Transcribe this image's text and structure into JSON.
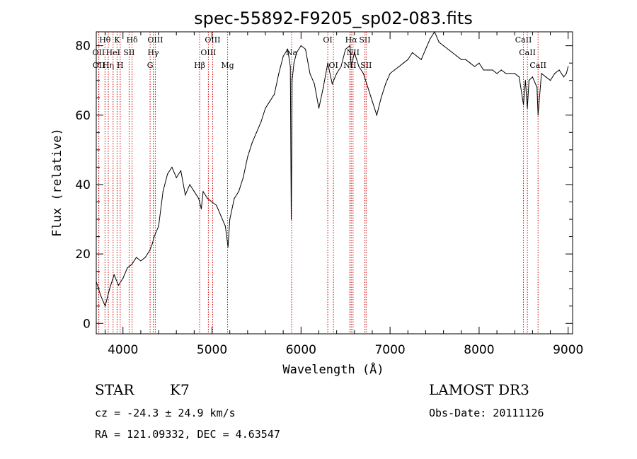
{
  "chart_data": {
    "type": "line",
    "title": "spec-55892-F9205_sp02-083.fits",
    "xlabel": "Wavelength (Å)",
    "ylabel": "Flux (relative)",
    "xlim": [
      3700,
      9050
    ],
    "ylim": [
      -3,
      84
    ],
    "x_ticks": [
      4000,
      5000,
      6000,
      7000,
      8000,
      9000
    ],
    "y_ticks": [
      0,
      20,
      40,
      60,
      80
    ],
    "series": [
      {
        "name": "spectrum",
        "x": [
          3700,
          3750,
          3800,
          3850,
          3900,
          3950,
          4000,
          4050,
          4100,
          4150,
          4200,
          4250,
          4300,
          4330,
          4350,
          4400,
          4450,
          4500,
          4550,
          4600,
          4650,
          4700,
          4750,
          4800,
          4850,
          4880,
          4900,
          4950,
          5000,
          5050,
          5100,
          5150,
          5180,
          5200,
          5250,
          5300,
          5350,
          5400,
          5450,
          5500,
          5550,
          5600,
          5650,
          5700,
          5750,
          5800,
          5850,
          5880,
          5890,
          5895,
          5900,
          5920,
          5950,
          6000,
          6050,
          6100,
          6150,
          6200,
          6250,
          6300,
          6350,
          6400,
          6450,
          6500,
          6550,
          6563,
          6600,
          6650,
          6700,
          6750,
          6800,
          6850,
          6900,
          6950,
          7000,
          7050,
          7100,
          7150,
          7200,
          7250,
          7300,
          7350,
          7400,
          7450,
          7500,
          7550,
          7600,
          7650,
          7700,
          7750,
          7800,
          7850,
          7900,
          7950,
          8000,
          8050,
          8100,
          8150,
          8200,
          8250,
          8300,
          8350,
          8400,
          8450,
          8498,
          8520,
          8542,
          8560,
          8600,
          8650,
          8662,
          8700,
          8750,
          8800,
          8850,
          8900,
          8950,
          8980,
          9000
        ],
        "y": [
          12,
          8,
          5,
          10,
          14,
          11,
          13,
          16,
          17,
          19,
          18,
          19,
          21,
          23,
          25,
          28,
          38,
          43,
          45,
          42,
          44,
          37,
          40,
          38,
          36,
          33,
          38,
          36,
          35,
          34,
          31,
          28,
          22,
          30,
          36,
          38,
          42,
          48,
          52,
          55,
          58,
          62,
          64,
          66,
          72,
          77,
          79,
          74,
          30,
          45,
          70,
          75,
          78,
          80,
          79,
          72,
          69,
          62,
          68,
          75,
          69,
          72,
          74,
          79,
          80,
          74,
          78,
          74,
          72,
          68,
          64,
          60,
          65,
          69,
          72,
          73,
          74,
          75,
          76,
          78,
          77,
          76,
          79,
          82,
          84,
          81,
          80,
          79,
          78,
          77,
          76,
          76,
          75,
          74,
          75,
          73,
          73,
          73,
          72,
          73,
          72,
          72,
          72,
          71,
          63,
          70,
          62,
          70,
          71,
          68,
          60,
          72,
          71,
          70,
          72,
          73,
          71,
          72,
          74
        ]
      }
    ],
    "line_markers": [
      {
        "label": "Hθ",
        "wave": 3798,
        "row": 0
      },
      {
        "label": "OII",
        "wave": 3727,
        "row": 1
      },
      {
        "label": "OII",
        "wave": 3729,
        "row": 2
      },
      {
        "label": "Hη",
        "wave": 3835,
        "row": 2
      },
      {
        "label": "HeI",
        "wave": 3889,
        "row": 1
      },
      {
        "label": "K",
        "wave": 3934,
        "row": 0
      },
      {
        "label": "H",
        "wave": 3969,
        "row": 2
      },
      {
        "label": "SII",
        "wave": 4069,
        "row": 1
      },
      {
        "label": "Hδ",
        "wave": 4102,
        "row": 0
      },
      {
        "label": "G",
        "wave": 4305,
        "row": 2
      },
      {
        "label": "OIII",
        "wave": 4363,
        "row": 0
      },
      {
        "label": "Hγ",
        "wave": 4340,
        "row": 1
      },
      {
        "label": "Hβ",
        "wave": 4861,
        "row": 2
      },
      {
        "label": "OIII",
        "wave": 5007,
        "row": 0
      },
      {
        "label": "OIII",
        "wave": 4959,
        "row": 1
      },
      {
        "label": "Mg",
        "wave": 5175,
        "row": 2
      },
      {
        "label": "Na",
        "wave": 5894,
        "row": 1
      },
      {
        "label": "OI",
        "wave": 6300,
        "row": 0
      },
      {
        "label": "OI",
        "wave": 6364,
        "row": 2
      },
      {
        "label": "Hα",
        "wave": 6563,
        "row": 0
      },
      {
        "label": "NII",
        "wave": 6548,
        "row": 2
      },
      {
        "label": "NII",
        "wave": 6584,
        "row": 1
      },
      {
        "label": "SII",
        "wave": 6717,
        "row": 0
      },
      {
        "label": "SII",
        "wave": 6731,
        "row": 2
      },
      {
        "label": "CaII",
        "wave": 8498,
        "row": 0
      },
      {
        "label": "CaII",
        "wave": 8542,
        "row": 1
      },
      {
        "label": "CaII",
        "wave": 8662,
        "row": 2
      }
    ]
  },
  "info": {
    "object_class": "STAR",
    "subclass": "K7",
    "survey": "LAMOST DR3",
    "redshift": "cz = -24.3 ± 24.9 km/s",
    "obs_date": "Obs-Date: 20111126",
    "coords": "RA = 121.09332, DEC =   4.63547"
  },
  "colors": {
    "line_marker": "#cc0000",
    "spectrum": "#000000"
  }
}
